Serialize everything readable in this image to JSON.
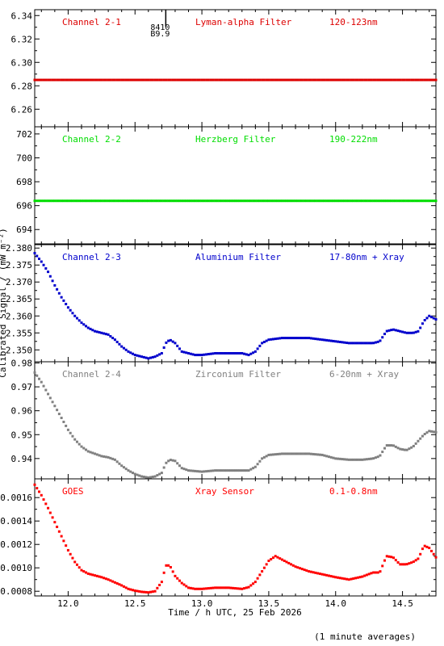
{
  "figure": {
    "ylabel": "Calibrated Signal / (mW m⁻²)",
    "xlabel": "Time / h UTC, 25 Feb 2026",
    "footnote": "(1 minute averages)",
    "xlim": [
      11.75,
      14.75
    ],
    "xticks": [
      12.0,
      12.5,
      13.0,
      13.5,
      14.0,
      14.5
    ],
    "xtick_labels": [
      "12.0",
      "12.5",
      "13.0",
      "13.5",
      "14.0",
      "14.5"
    ],
    "event_marker": {
      "x": 12.73,
      "label1": "8410",
      "label2": "B9.9",
      "color": "#000000"
    }
  },
  "chart_data": [
    {
      "type": "scatter",
      "ylim": [
        6.245,
        6.345
      ],
      "yticks": [
        6.26,
        6.28,
        6.3,
        6.32,
        6.34
      ],
      "ytick_labels": [
        "6.26",
        "6.28",
        "6.30",
        "6.32",
        "6.34"
      ],
      "labels": [
        "Channel 2-1",
        "Lyman-alpha Filter",
        "120-123nm"
      ],
      "color": "#dd0000",
      "points": [
        [
          11.75,
          6.285
        ],
        [
          14.75,
          6.285
        ]
      ]
    },
    {
      "type": "scatter",
      "ylim": [
        692.8,
        702.6
      ],
      "yticks": [
        694,
        696,
        698,
        700,
        702
      ],
      "ytick_labels": [
        "694",
        "696",
        "698",
        "700",
        "702"
      ],
      "labels": [
        "Channel 2-2",
        "Herzberg Filter",
        "190-222nm"
      ],
      "color": "#00dd00",
      "points": [
        [
          11.75,
          696.4
        ],
        [
          14.75,
          696.4
        ]
      ]
    },
    {
      "type": "scatter",
      "ylim": [
        2.3465,
        2.381
      ],
      "yticks": [
        2.35,
        2.355,
        2.36,
        2.365,
        2.37,
        2.375,
        2.38
      ],
      "ytick_labels": [
        "2.350",
        "2.355",
        "2.360",
        "2.365",
        "2.370",
        "2.375",
        "2.380"
      ],
      "labels": [
        "Channel 2-3",
        "Aluminium Filter",
        "17-80nm + Xray"
      ],
      "color": "#0000cc",
      "points": [
        [
          11.75,
          2.3785
        ],
        [
          11.8,
          2.376
        ],
        [
          11.85,
          2.373
        ],
        [
          11.9,
          2.369
        ],
        [
          11.95,
          2.3655
        ],
        [
          12.0,
          2.3625
        ],
        [
          12.05,
          2.36
        ],
        [
          12.1,
          2.358
        ],
        [
          12.15,
          2.3565
        ],
        [
          12.2,
          2.3555
        ],
        [
          12.25,
          2.355
        ],
        [
          12.3,
          2.3545
        ],
        [
          12.35,
          2.353
        ],
        [
          12.4,
          2.351
        ],
        [
          12.45,
          2.3495
        ],
        [
          12.5,
          2.3485
        ],
        [
          12.55,
          2.348
        ],
        [
          12.6,
          2.3475
        ],
        [
          12.65,
          2.348
        ],
        [
          12.7,
          2.349
        ],
        [
          12.73,
          2.352
        ],
        [
          12.76,
          2.353
        ],
        [
          12.8,
          2.352
        ],
        [
          12.85,
          2.3495
        ],
        [
          12.9,
          2.349
        ],
        [
          12.95,
          2.3485
        ],
        [
          13.0,
          2.3485
        ],
        [
          13.1,
          2.349
        ],
        [
          13.2,
          2.349
        ],
        [
          13.3,
          2.349
        ],
        [
          13.35,
          2.3485
        ],
        [
          13.4,
          2.3495
        ],
        [
          13.45,
          2.352
        ],
        [
          13.5,
          2.353
        ],
        [
          13.6,
          2.3535
        ],
        [
          13.7,
          2.3535
        ],
        [
          13.8,
          2.3535
        ],
        [
          13.9,
          2.353
        ],
        [
          14.0,
          2.3525
        ],
        [
          14.1,
          2.352
        ],
        [
          14.2,
          2.352
        ],
        [
          14.28,
          2.352
        ],
        [
          14.33,
          2.3525
        ],
        [
          14.38,
          2.3555
        ],
        [
          14.43,
          2.356
        ],
        [
          14.48,
          2.3555
        ],
        [
          14.53,
          2.355
        ],
        [
          14.58,
          2.355
        ],
        [
          14.62,
          2.3555
        ],
        [
          14.66,
          2.3585
        ],
        [
          14.7,
          2.36
        ],
        [
          14.75,
          2.359
        ]
      ]
    },
    {
      "type": "scatter",
      "ylim": [
        0.9315,
        0.9805
      ],
      "yticks": [
        0.94,
        0.95,
        0.96,
        0.97,
        0.98
      ],
      "ytick_labels": [
        "0.94",
        "0.95",
        "0.96",
        "0.97",
        "0.98"
      ],
      "labels": [
        "Channel 2-4",
        "Zirconium Filter",
        "6-20nm + Xray"
      ],
      "color": "#808080",
      "points": [
        [
          11.75,
          0.976
        ],
        [
          11.8,
          0.972
        ],
        [
          11.85,
          0.967
        ],
        [
          11.9,
          0.962
        ],
        [
          11.95,
          0.957
        ],
        [
          12.0,
          0.952
        ],
        [
          12.05,
          0.948
        ],
        [
          12.1,
          0.945
        ],
        [
          12.15,
          0.943
        ],
        [
          12.2,
          0.942
        ],
        [
          12.25,
          0.941
        ],
        [
          12.3,
          0.9405
        ],
        [
          12.35,
          0.9395
        ],
        [
          12.4,
          0.937
        ],
        [
          12.45,
          0.935
        ],
        [
          12.5,
          0.9335
        ],
        [
          12.55,
          0.9325
        ],
        [
          12.6,
          0.932
        ],
        [
          12.65,
          0.9325
        ],
        [
          12.7,
          0.934
        ],
        [
          12.73,
          0.938
        ],
        [
          12.76,
          0.9395
        ],
        [
          12.8,
          0.939
        ],
        [
          12.85,
          0.936
        ],
        [
          12.9,
          0.935
        ],
        [
          13.0,
          0.9345
        ],
        [
          13.1,
          0.935
        ],
        [
          13.2,
          0.935
        ],
        [
          13.3,
          0.935
        ],
        [
          13.35,
          0.935
        ],
        [
          13.4,
          0.9365
        ],
        [
          13.45,
          0.94
        ],
        [
          13.5,
          0.9415
        ],
        [
          13.6,
          0.942
        ],
        [
          13.7,
          0.942
        ],
        [
          13.8,
          0.942
        ],
        [
          13.9,
          0.9415
        ],
        [
          14.0,
          0.94
        ],
        [
          14.1,
          0.9395
        ],
        [
          14.2,
          0.9395
        ],
        [
          14.28,
          0.94
        ],
        [
          14.33,
          0.941
        ],
        [
          14.38,
          0.9455
        ],
        [
          14.43,
          0.9455
        ],
        [
          14.48,
          0.944
        ],
        [
          14.53,
          0.9435
        ],
        [
          14.58,
          0.945
        ],
        [
          14.62,
          0.9475
        ],
        [
          14.66,
          0.95
        ],
        [
          14.7,
          0.9515
        ],
        [
          14.75,
          0.951
        ]
      ]
    },
    {
      "type": "scatter",
      "ylim": [
        0.00076,
        0.00176
      ],
      "yticks": [
        0.0008,
        0.001,
        0.0012,
        0.0014,
        0.0016
      ],
      "ytick_labels": [
        "0.0008",
        "0.0010",
        "0.0012",
        "0.0014",
        "0.0016"
      ],
      "labels": [
        "GOES",
        "Xray Sensor",
        "0.1-0.8nm"
      ],
      "color": "#ff0000",
      "points": [
        [
          11.75,
          0.00171
        ],
        [
          11.8,
          0.00162
        ],
        [
          11.85,
          0.00151
        ],
        [
          11.9,
          0.00139
        ],
        [
          11.95,
          0.00127
        ],
        [
          12.0,
          0.00115
        ],
        [
          12.05,
          0.00105
        ],
        [
          12.1,
          0.00098
        ],
        [
          12.15,
          0.00095
        ],
        [
          12.2,
          0.000935
        ],
        [
          12.25,
          0.00092
        ],
        [
          12.3,
          0.0009
        ],
        [
          12.35,
          0.000875
        ],
        [
          12.4,
          0.00085
        ],
        [
          12.45,
          0.00082
        ],
        [
          12.5,
          0.000805
        ],
        [
          12.55,
          0.000795
        ],
        [
          12.6,
          0.00079
        ],
        [
          12.65,
          0.0008
        ],
        [
          12.7,
          0.00088
        ],
        [
          12.73,
          0.00102
        ],
        [
          12.76,
          0.00102
        ],
        [
          12.8,
          0.00093
        ],
        [
          12.85,
          0.00087
        ],
        [
          12.9,
          0.00083
        ],
        [
          12.95,
          0.00082
        ],
        [
          13.0,
          0.00082
        ],
        [
          13.1,
          0.00083
        ],
        [
          13.2,
          0.00083
        ],
        [
          13.3,
          0.00082
        ],
        [
          13.35,
          0.000835
        ],
        [
          13.4,
          0.00088
        ],
        [
          13.45,
          0.00097
        ],
        [
          13.5,
          0.00106
        ],
        [
          13.55,
          0.0011
        ],
        [
          13.6,
          0.00107
        ],
        [
          13.7,
          0.00101
        ],
        [
          13.8,
          0.00097
        ],
        [
          13.9,
          0.000945
        ],
        [
          14.0,
          0.00092
        ],
        [
          14.1,
          0.0009
        ],
        [
          14.2,
          0.000925
        ],
        [
          14.28,
          0.00096
        ],
        [
          14.33,
          0.00096
        ],
        [
          14.38,
          0.0011
        ],
        [
          14.43,
          0.00109
        ],
        [
          14.48,
          0.00103
        ],
        [
          14.53,
          0.00103
        ],
        [
          14.58,
          0.00105
        ],
        [
          14.62,
          0.00108
        ],
        [
          14.66,
          0.00119
        ],
        [
          14.7,
          0.00117
        ],
        [
          14.75,
          0.00109
        ]
      ]
    }
  ]
}
